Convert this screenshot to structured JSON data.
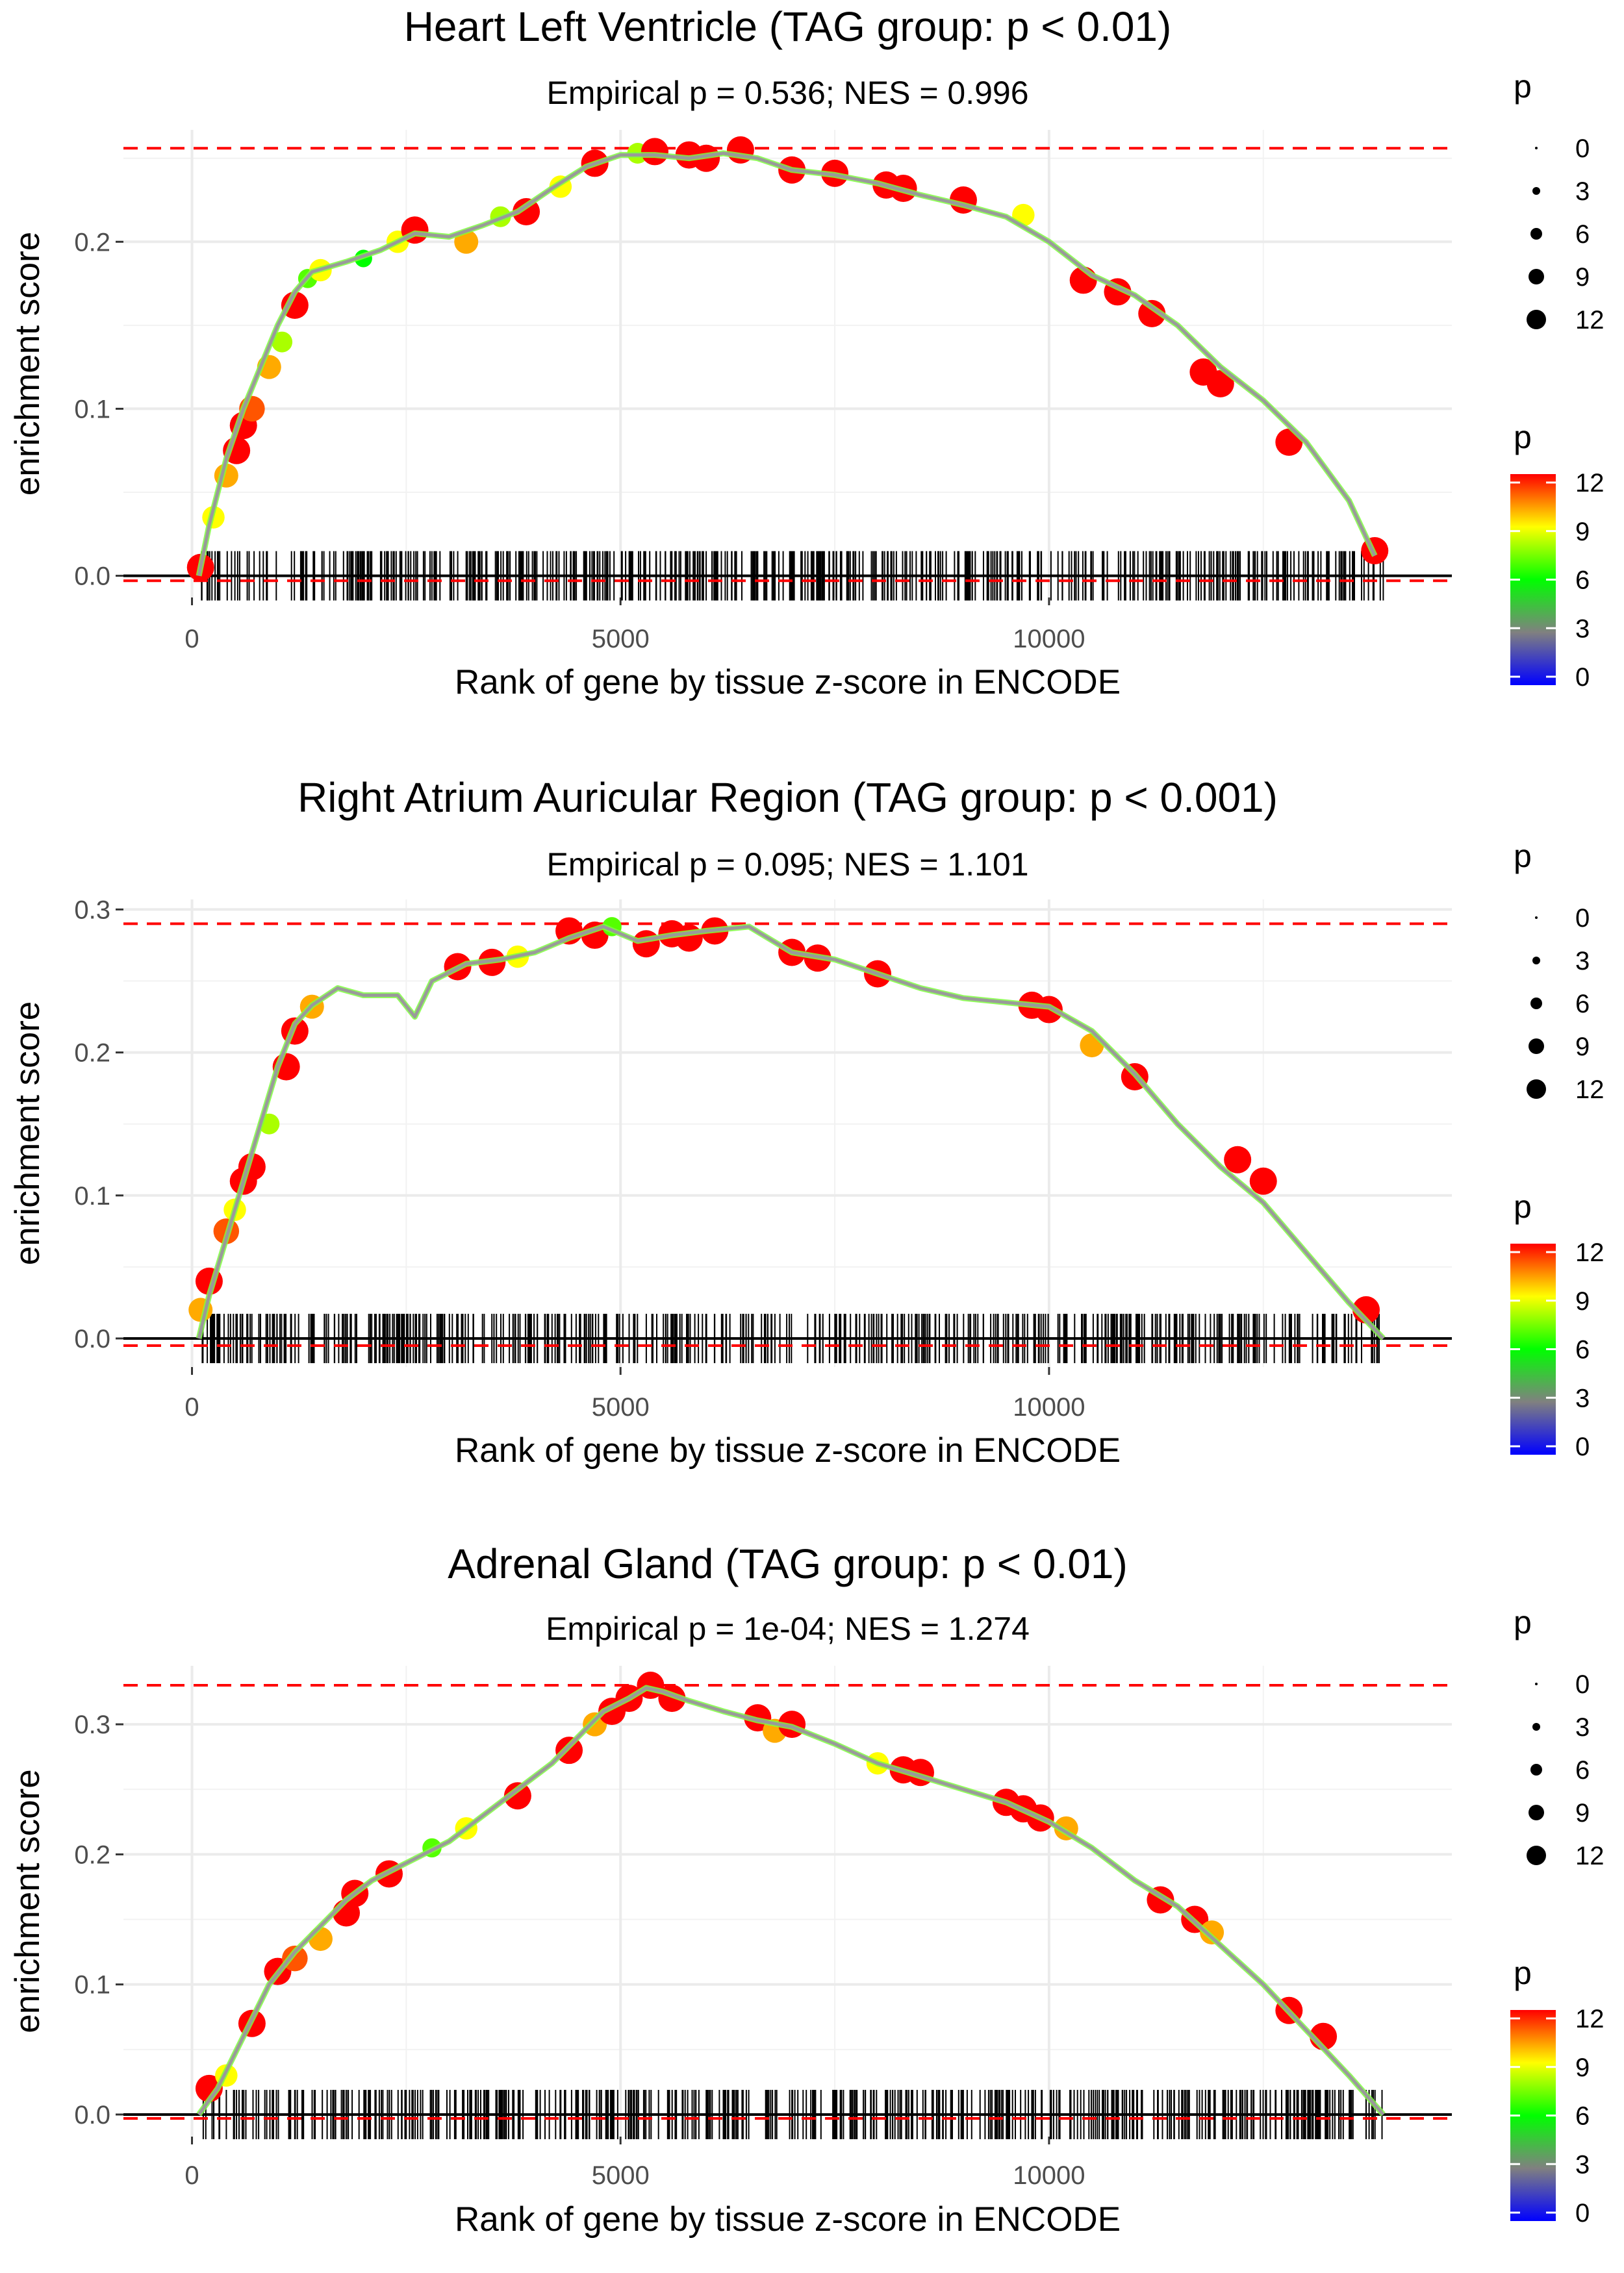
{
  "chart_data": [
    {
      "type": "line",
      "title": "Heart Left Ventricle (TAG group: p < 0.01)",
      "subtitle": "Empirical p = 0.536; NES = 0.996",
      "xlabel": "Rank of gene by tissue z-score in ENCODE",
      "ylabel": "enrichment score",
      "xlim": [
        -800,
        14700
      ],
      "ylim": [
        -0.013,
        0.267
      ],
      "xticks": [
        0,
        5000,
        10000
      ],
      "xtick_labels": [
        "0",
        "5000",
        "10000"
      ],
      "yticks": [
        0.0,
        0.1,
        0.2
      ],
      "ytick_labels": [
        "0.0",
        "0.1",
        "0.2"
      ],
      "max_es": 0.256,
      "min_es": -0.003,
      "rug_range": [
        100,
        13900
      ],
      "curve": {
        "x": [
          80,
          200,
          400,
          600,
          800,
          1000,
          1200,
          1400,
          1800,
          2200,
          2600,
          3000,
          3400,
          3800,
          4200,
          4600,
          5000,
          5400,
          5800,
          6200,
          6600,
          7000,
          7500,
          8000,
          8500,
          9000,
          9500,
          10000,
          10500,
          11000,
          11500,
          12000,
          12500,
          13000,
          13500,
          13800
        ],
        "y": [
          0.0,
          0.03,
          0.07,
          0.1,
          0.125,
          0.15,
          0.17,
          0.182,
          0.188,
          0.195,
          0.205,
          0.203,
          0.21,
          0.218,
          0.232,
          0.245,
          0.252,
          0.252,
          0.25,
          0.253,
          0.25,
          0.243,
          0.24,
          0.235,
          0.228,
          0.222,
          0.215,
          0.2,
          0.18,
          0.168,
          0.15,
          0.125,
          0.105,
          0.08,
          0.045,
          0.012
        ]
      },
      "points": [
        {
          "x": 100,
          "y": 0.005,
          "p": 12
        },
        {
          "x": 250,
          "y": 0.035,
          "p": 9
        },
        {
          "x": 400,
          "y": 0.06,
          "p": 10
        },
        {
          "x": 520,
          "y": 0.075,
          "p": 12
        },
        {
          "x": 600,
          "y": 0.09,
          "p": 12
        },
        {
          "x": 700,
          "y": 0.1,
          "p": 11
        },
        {
          "x": 900,
          "y": 0.125,
          "p": 10
        },
        {
          "x": 1050,
          "y": 0.14,
          "p": 8
        },
        {
          "x": 1200,
          "y": 0.162,
          "p": 12
        },
        {
          "x": 1350,
          "y": 0.178,
          "p": 7
        },
        {
          "x": 1500,
          "y": 0.183,
          "p": 9
        },
        {
          "x": 2000,
          "y": 0.19,
          "p": 6
        },
        {
          "x": 2400,
          "y": 0.2,
          "p": 9
        },
        {
          "x": 2600,
          "y": 0.207,
          "p": 12
        },
        {
          "x": 3200,
          "y": 0.2,
          "p": 10
        },
        {
          "x": 3600,
          "y": 0.215,
          "p": 8
        },
        {
          "x": 3900,
          "y": 0.218,
          "p": 12
        },
        {
          "x": 4300,
          "y": 0.233,
          "p": 9
        },
        {
          "x": 4700,
          "y": 0.247,
          "p": 12
        },
        {
          "x": 5200,
          "y": 0.253,
          "p": 8
        },
        {
          "x": 5400,
          "y": 0.254,
          "p": 12
        },
        {
          "x": 5800,
          "y": 0.252,
          "p": 12
        },
        {
          "x": 6000,
          "y": 0.25,
          "p": 12
        },
        {
          "x": 6400,
          "y": 0.255,
          "p": 12
        },
        {
          "x": 7000,
          "y": 0.243,
          "p": 12
        },
        {
          "x": 7500,
          "y": 0.241,
          "p": 12
        },
        {
          "x": 8100,
          "y": 0.234,
          "p": 12
        },
        {
          "x": 8300,
          "y": 0.232,
          "p": 12
        },
        {
          "x": 9000,
          "y": 0.225,
          "p": 12
        },
        {
          "x": 9700,
          "y": 0.216,
          "p": 9
        },
        {
          "x": 10400,
          "y": 0.177,
          "p": 12
        },
        {
          "x": 10800,
          "y": 0.17,
          "p": 12
        },
        {
          "x": 11200,
          "y": 0.157,
          "p": 12
        },
        {
          "x": 11800,
          "y": 0.122,
          "p": 12
        },
        {
          "x": 12000,
          "y": 0.115,
          "p": 12
        },
        {
          "x": 12800,
          "y": 0.08,
          "p": 12
        },
        {
          "x": 13800,
          "y": 0.015,
          "p": 12
        }
      ],
      "legend_size": {
        "title": "p",
        "labels": [
          "0",
          "3",
          "6",
          "9",
          "12"
        ]
      },
      "legend_color": {
        "title": "p",
        "labels": [
          "12",
          "9",
          "6",
          "3",
          "0"
        ],
        "colors": [
          "#ff0000",
          "#ffff00",
          "#00ff00",
          "#808080",
          "#0000ff"
        ]
      }
    },
    {
      "type": "line",
      "title": "Right Atrium Auricular Region (TAG group: p < 0.001)",
      "subtitle": "Empirical p = 0.095; NES = 1.101",
      "xlabel": "Rank of gene by tissue z-score in ENCODE",
      "ylabel": "enrichment score",
      "xlim": [
        -800,
        14700
      ],
      "ylim": [
        -0.02,
        0.307
      ],
      "xticks": [
        0,
        5000,
        10000
      ],
      "xtick_labels": [
        "0",
        "5000",
        "10000"
      ],
      "yticks": [
        0.0,
        0.1,
        0.2,
        0.3
      ],
      "ytick_labels": [
        "0.0",
        "0.1",
        "0.2",
        "0.3"
      ],
      "max_es": 0.29,
      "min_es": -0.005,
      "rug_range": [
        100,
        13900
      ],
      "curve": {
        "x": [
          80,
          200,
          400,
          600,
          800,
          1000,
          1200,
          1400,
          1700,
          2000,
          2400,
          2600,
          2800,
          3200,
          3600,
          4000,
          4400,
          4800,
          5200,
          5600,
          6000,
          6500,
          7000,
          7500,
          8000,
          8500,
          9000,
          9500,
          10000,
          10500,
          11000,
          11500,
          12000,
          12500,
          13000,
          13500,
          13900
        ],
        "y": [
          0.0,
          0.03,
          0.07,
          0.11,
          0.15,
          0.19,
          0.22,
          0.233,
          0.245,
          0.24,
          0.24,
          0.225,
          0.25,
          0.262,
          0.265,
          0.27,
          0.28,
          0.288,
          0.278,
          0.282,
          0.285,
          0.288,
          0.27,
          0.265,
          0.255,
          0.245,
          0.238,
          0.235,
          0.232,
          0.215,
          0.185,
          0.15,
          0.12,
          0.095,
          0.06,
          0.025,
          0.0
        ]
      },
      "points": [
        {
          "x": 100,
          "y": 0.02,
          "p": 10
        },
        {
          "x": 200,
          "y": 0.04,
          "p": 12
        },
        {
          "x": 400,
          "y": 0.075,
          "p": 11
        },
        {
          "x": 500,
          "y": 0.09,
          "p": 9
        },
        {
          "x": 600,
          "y": 0.11,
          "p": 12
        },
        {
          "x": 700,
          "y": 0.12,
          "p": 12
        },
        {
          "x": 900,
          "y": 0.15,
          "p": 8
        },
        {
          "x": 1100,
          "y": 0.19,
          "p": 12
        },
        {
          "x": 1200,
          "y": 0.215,
          "p": 12
        },
        {
          "x": 1400,
          "y": 0.232,
          "p": 10
        },
        {
          "x": 3100,
          "y": 0.26,
          "p": 12
        },
        {
          "x": 3500,
          "y": 0.263,
          "p": 12
        },
        {
          "x": 3800,
          "y": 0.267,
          "p": 9
        },
        {
          "x": 4400,
          "y": 0.285,
          "p": 12
        },
        {
          "x": 4700,
          "y": 0.282,
          "p": 12
        },
        {
          "x": 4900,
          "y": 0.288,
          "p": 7
        },
        {
          "x": 5300,
          "y": 0.276,
          "p": 12
        },
        {
          "x": 5600,
          "y": 0.283,
          "p": 12
        },
        {
          "x": 5800,
          "y": 0.28,
          "p": 12
        },
        {
          "x": 6100,
          "y": 0.285,
          "p": 12
        },
        {
          "x": 7000,
          "y": 0.27,
          "p": 12
        },
        {
          "x": 7300,
          "y": 0.266,
          "p": 12
        },
        {
          "x": 8000,
          "y": 0.255,
          "p": 12
        },
        {
          "x": 9800,
          "y": 0.233,
          "p": 12
        },
        {
          "x": 10000,
          "y": 0.23,
          "p": 12
        },
        {
          "x": 10500,
          "y": 0.205,
          "p": 10
        },
        {
          "x": 11000,
          "y": 0.183,
          "p": 12
        },
        {
          "x": 12200,
          "y": 0.125,
          "p": 12
        },
        {
          "x": 12500,
          "y": 0.11,
          "p": 12
        },
        {
          "x": 13700,
          "y": 0.02,
          "p": 12
        }
      ],
      "legend_size": {
        "title": "p",
        "labels": [
          "0",
          "3",
          "6",
          "9",
          "12"
        ]
      },
      "legend_color": {
        "title": "p",
        "labels": [
          "12",
          "9",
          "6",
          "3",
          "0"
        ],
        "colors": [
          "#ff0000",
          "#ffff00",
          "#00ff00",
          "#808080",
          "#0000ff"
        ]
      }
    },
    {
      "type": "line",
      "title": "Adrenal Gland (TAG group: p < 0.01)",
      "subtitle": "Empirical p = 1e-04; NES = 1.274",
      "xlabel": "Rank of gene by tissue z-score in ENCODE",
      "ylabel": "enrichment score",
      "xlim": [
        -800,
        14700
      ],
      "ylim": [
        -0.017,
        0.345
      ],
      "xticks": [
        0,
        5000,
        10000
      ],
      "xtick_labels": [
        "0",
        "5000",
        "10000"
      ],
      "yticks": [
        0.0,
        0.1,
        0.2,
        0.3
      ],
      "ytick_labels": [
        "0.0",
        "0.1",
        "0.2",
        "0.3"
      ],
      "max_es": 0.33,
      "min_es": -0.003,
      "rug_range": [
        100,
        13900
      ],
      "curve": {
        "x": [
          80,
          300,
          600,
          900,
          1200,
          1500,
          1800,
          2100,
          2400,
          2700,
          3000,
          3300,
          3600,
          3900,
          4200,
          4500,
          4800,
          5100,
          5300,
          5500,
          5800,
          6200,
          6600,
          7000,
          7500,
          8000,
          8500,
          9000,
          9500,
          10000,
          10500,
          11000,
          11500,
          12000,
          12500,
          13000,
          13500,
          13900
        ],
        "y": [
          0.0,
          0.02,
          0.06,
          0.1,
          0.125,
          0.145,
          0.165,
          0.18,
          0.19,
          0.2,
          0.21,
          0.225,
          0.24,
          0.255,
          0.27,
          0.29,
          0.31,
          0.32,
          0.328,
          0.325,
          0.318,
          0.31,
          0.303,
          0.298,
          0.285,
          0.27,
          0.26,
          0.25,
          0.24,
          0.225,
          0.205,
          0.18,
          0.16,
          0.13,
          0.1,
          0.065,
          0.03,
          0.0
        ]
      },
      "points": [
        {
          "x": 200,
          "y": 0.02,
          "p": 12
        },
        {
          "x": 400,
          "y": 0.03,
          "p": 9
        },
        {
          "x": 700,
          "y": 0.07,
          "p": 12
        },
        {
          "x": 1000,
          "y": 0.11,
          "p": 12
        },
        {
          "x": 1200,
          "y": 0.12,
          "p": 11
        },
        {
          "x": 1500,
          "y": 0.135,
          "p": 10
        },
        {
          "x": 1800,
          "y": 0.155,
          "p": 12
        },
        {
          "x": 1900,
          "y": 0.17,
          "p": 12
        },
        {
          "x": 2300,
          "y": 0.185,
          "p": 12
        },
        {
          "x": 2800,
          "y": 0.205,
          "p": 7
        },
        {
          "x": 3200,
          "y": 0.22,
          "p": 9
        },
        {
          "x": 3800,
          "y": 0.245,
          "p": 12
        },
        {
          "x": 4400,
          "y": 0.28,
          "p": 12
        },
        {
          "x": 4700,
          "y": 0.3,
          "p": 10
        },
        {
          "x": 4900,
          "y": 0.31,
          "p": 12
        },
        {
          "x": 5100,
          "y": 0.32,
          "p": 12
        },
        {
          "x": 5350,
          "y": 0.33,
          "p": 12
        },
        {
          "x": 5600,
          "y": 0.32,
          "p": 12
        },
        {
          "x": 6600,
          "y": 0.305,
          "p": 12
        },
        {
          "x": 6800,
          "y": 0.295,
          "p": 10
        },
        {
          "x": 7000,
          "y": 0.3,
          "p": 12
        },
        {
          "x": 8000,
          "y": 0.27,
          "p": 9
        },
        {
          "x": 8300,
          "y": 0.265,
          "p": 12
        },
        {
          "x": 8500,
          "y": 0.263,
          "p": 12
        },
        {
          "x": 9500,
          "y": 0.24,
          "p": 12
        },
        {
          "x": 9700,
          "y": 0.235,
          "p": 12
        },
        {
          "x": 9900,
          "y": 0.228,
          "p": 12
        },
        {
          "x": 10200,
          "y": 0.22,
          "p": 10
        },
        {
          "x": 11300,
          "y": 0.165,
          "p": 12
        },
        {
          "x": 11700,
          "y": 0.15,
          "p": 12
        },
        {
          "x": 11900,
          "y": 0.14,
          "p": 10
        },
        {
          "x": 12800,
          "y": 0.08,
          "p": 12
        },
        {
          "x": 13200,
          "y": 0.06,
          "p": 12
        }
      ],
      "legend_size": {
        "title": "p",
        "labels": [
          "0",
          "3",
          "6",
          "9",
          "12"
        ]
      },
      "legend_color": {
        "title": "p",
        "labels": [
          "12",
          "9",
          "6",
          "3",
          "0"
        ],
        "colors": [
          "#ff0000",
          "#ffff00",
          "#00ff00",
          "#808080",
          "#0000ff"
        ]
      }
    }
  ]
}
